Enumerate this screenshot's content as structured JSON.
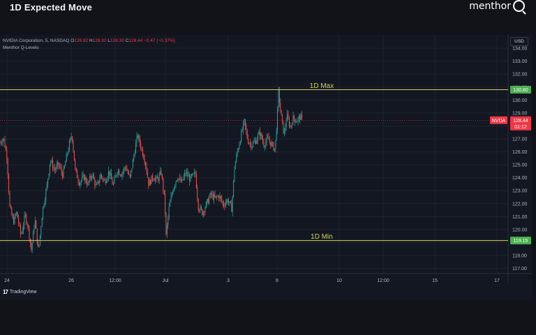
{
  "header": {
    "title": "1D Expected Move",
    "brand": "menthor",
    "brand_letter": "Q"
  },
  "legend": {
    "symbol": "NVIDIA Corporation, 5, NASDAQ",
    "open_label": "O",
    "open": "128.92",
    "high_label": "H",
    "high": "128.92",
    "low_label": "L",
    "low": "128.30",
    "close_label": "C",
    "close": "128.44",
    "change": "−0.47 (−0.37%)",
    "indicator": "Menthor Q-Levels"
  },
  "currency": "USD",
  "footer": {
    "logo_text": "TradingView",
    "logo_mark": "17"
  },
  "colors": {
    "background": "#131722",
    "up": "#26a69a",
    "down": "#ef5350",
    "level_line": "#d4cf5a",
    "level_badge": "#4caf50",
    "price_badge": "#f23645"
  },
  "chart_data": {
    "type": "candlestick",
    "symbol": "NVDA",
    "timeframe": "5",
    "ylim": [
      116.6,
      134.6
    ],
    "y_ticks": [
      117,
      118,
      119,
      120,
      121,
      122,
      123,
      124,
      125,
      126,
      127,
      128,
      129,
      130,
      131,
      132,
      133,
      134
    ],
    "y_tick_labels": [
      "117.00",
      "118.00",
      "119.00",
      "120.00",
      "121.00",
      "122.00",
      "123.00",
      "124.00",
      "125.00",
      "126.00",
      "127.00",
      "128.00",
      "129.00",
      "130.00",
      "131.00",
      "132.00",
      "133.00",
      "134.00"
    ],
    "x_ticks": [
      "24",
      "26",
      "12:00",
      "Jul",
      "3",
      "8",
      "10",
      "12:00",
      "15",
      "17"
    ],
    "levels": [
      {
        "label": "1D Max",
        "value": 130.8,
        "value_label": "130.80"
      },
      {
        "label": "1D Min",
        "value": 119.15,
        "value_label": "119.15"
      }
    ],
    "last_price": {
      "ticker": "NVDA",
      "value": 128.44,
      "value_label": "128.44",
      "countdown": "01:12"
    },
    "path": [
      [
        0,
        126.7
      ],
      [
        5,
        127.1
      ],
      [
        10,
        125.6
      ],
      [
        14,
        121.7
      ],
      [
        19,
        120.6
      ],
      [
        24,
        121.3
      ],
      [
        30,
        119.5
      ],
      [
        36,
        121.1
      ],
      [
        40,
        120.3
      ],
      [
        45,
        118.4
      ],
      [
        50,
        120.8
      ],
      [
        55,
        118.3
      ],
      [
        61,
        121.5
      ],
      [
        67,
        123.3
      ],
      [
        72,
        125.4
      ],
      [
        78,
        124.6
      ],
      [
        84,
        125.0
      ],
      [
        90,
        124.2
      ],
      [
        96,
        125.8
      ],
      [
        103,
        127.4
      ],
      [
        108,
        124.5
      ],
      [
        114,
        123.6
      ],
      [
        120,
        124.1
      ],
      [
        126,
        123.5
      ],
      [
        132,
        124.3
      ],
      [
        138,
        123.2
      ],
      [
        144,
        124.2
      ],
      [
        150,
        123.7
      ],
      [
        156,
        124.5
      ],
      [
        162,
        123.4
      ],
      [
        168,
        124.6
      ],
      [
        174,
        124.3
      ],
      [
        180,
        124.9
      ],
      [
        186,
        123.9
      ],
      [
        192,
        125.8
      ],
      [
        197,
        127.3
      ],
      [
        203,
        126.2
      ],
      [
        208,
        125.3
      ],
      [
        213,
        123.5
      ],
      [
        219,
        124.1
      ],
      [
        225,
        123.8
      ],
      [
        231,
        124.4
      ],
      [
        236,
        122.2
      ],
      [
        238,
        119.5
      ],
      [
        242,
        121.6
      ],
      [
        248,
        123.2
      ],
      [
        254,
        124.1
      ],
      [
        260,
        123.6
      ],
      [
        266,
        124.4
      ],
      [
        272,
        123.9
      ],
      [
        280,
        124.3
      ],
      [
        284,
        121.8
      ],
      [
        290,
        121.3
      ],
      [
        296,
        122.0
      ],
      [
        302,
        122.7
      ],
      [
        308,
        122.4
      ],
      [
        314,
        122.6
      ],
      [
        320,
        121.9
      ],
      [
        326,
        122.3
      ],
      [
        332,
        121.6
      ],
      [
        336,
        124.8
      ],
      [
        340,
        126.0
      ],
      [
        345,
        127.2
      ],
      [
        350,
        128.3
      ],
      [
        355,
        126.9
      ],
      [
        361,
        126.5
      ],
      [
        367,
        126.9
      ],
      [
        372,
        127.5
      ],
      [
        378,
        126.6
      ],
      [
        384,
        127.0
      ],
      [
        390,
        126.5
      ],
      [
        394,
        126.2
      ],
      [
        397,
        128.5
      ],
      [
        399,
        130.6
      ],
      [
        403,
        128.7
      ],
      [
        407,
        127.3
      ],
      [
        411,
        128.8
      ],
      [
        416,
        127.9
      ],
      [
        420,
        128.6
      ],
      [
        425,
        128.4
      ],
      [
        430,
        128.7
      ],
      [
        433,
        128.44
      ]
    ]
  }
}
